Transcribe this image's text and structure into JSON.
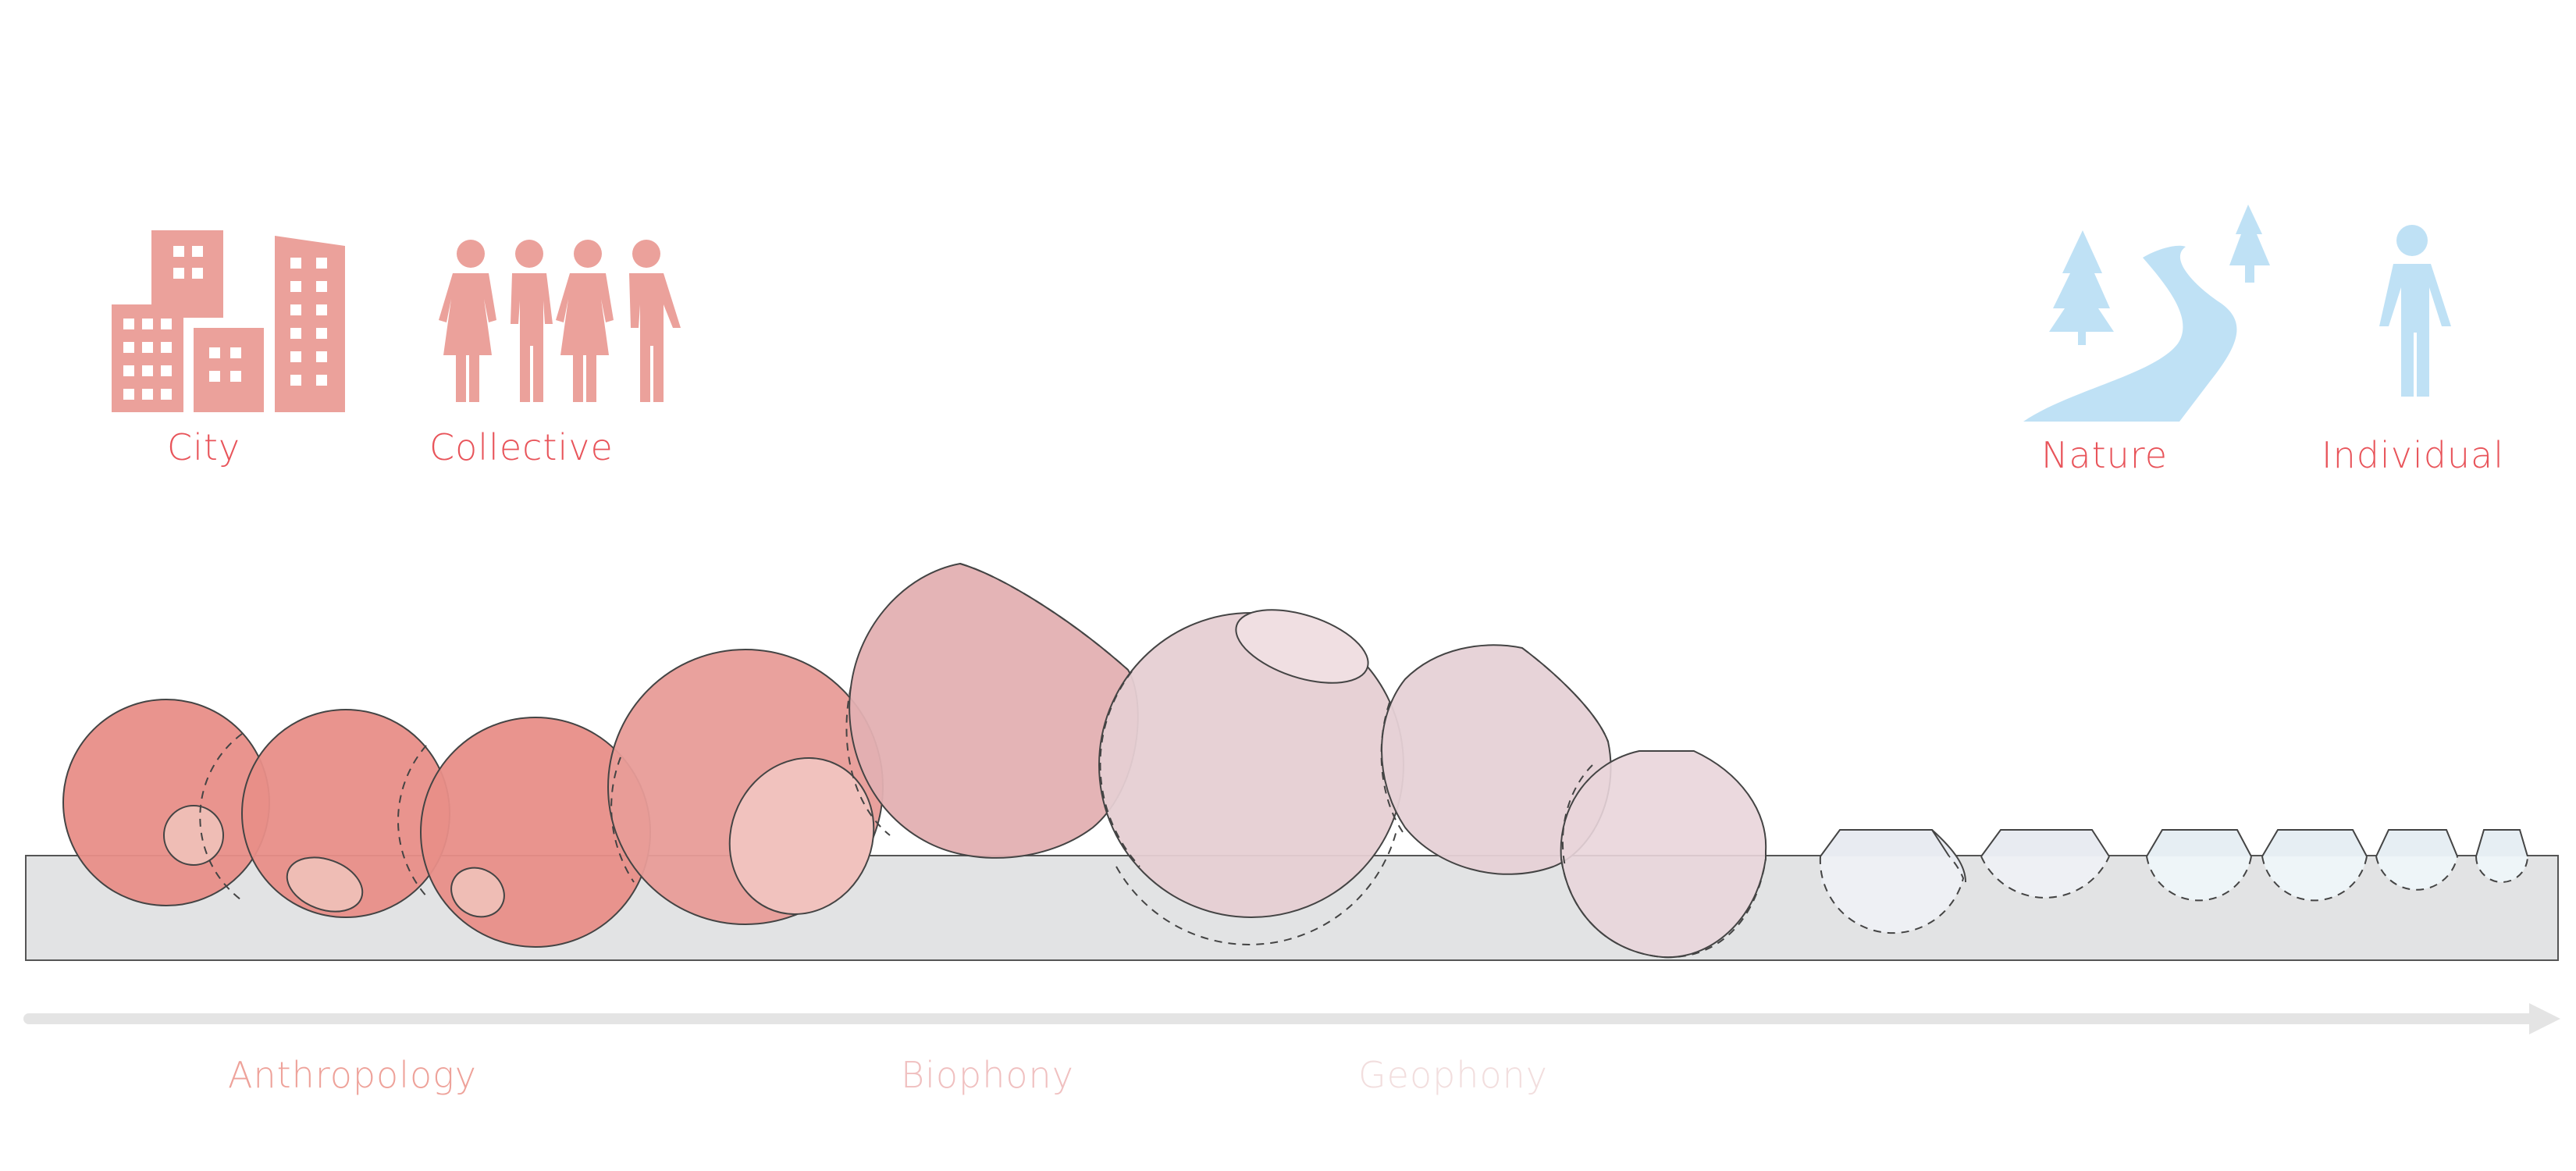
{
  "categories": {
    "city": "City",
    "collective": "Collective",
    "nature": "Nature",
    "individual": "Individual"
  },
  "axis": {
    "anthropology": "Anthropology",
    "biophony": "Biophony",
    "geophony": "Geophony"
  },
  "colors": {
    "human_icon": "#eba19b",
    "nature_icon": "#bfe1f5",
    "label_red": "#e8545a",
    "anthropology": "#eea29a",
    "biophony": "#f0c0c0",
    "geophony": "#f2dede",
    "ground": "#e2e3e4",
    "arrow": "#e4e4e4"
  },
  "icons": [
    "buildings-icon",
    "people-group-icon",
    "trees-river-icon",
    "person-icon"
  ]
}
